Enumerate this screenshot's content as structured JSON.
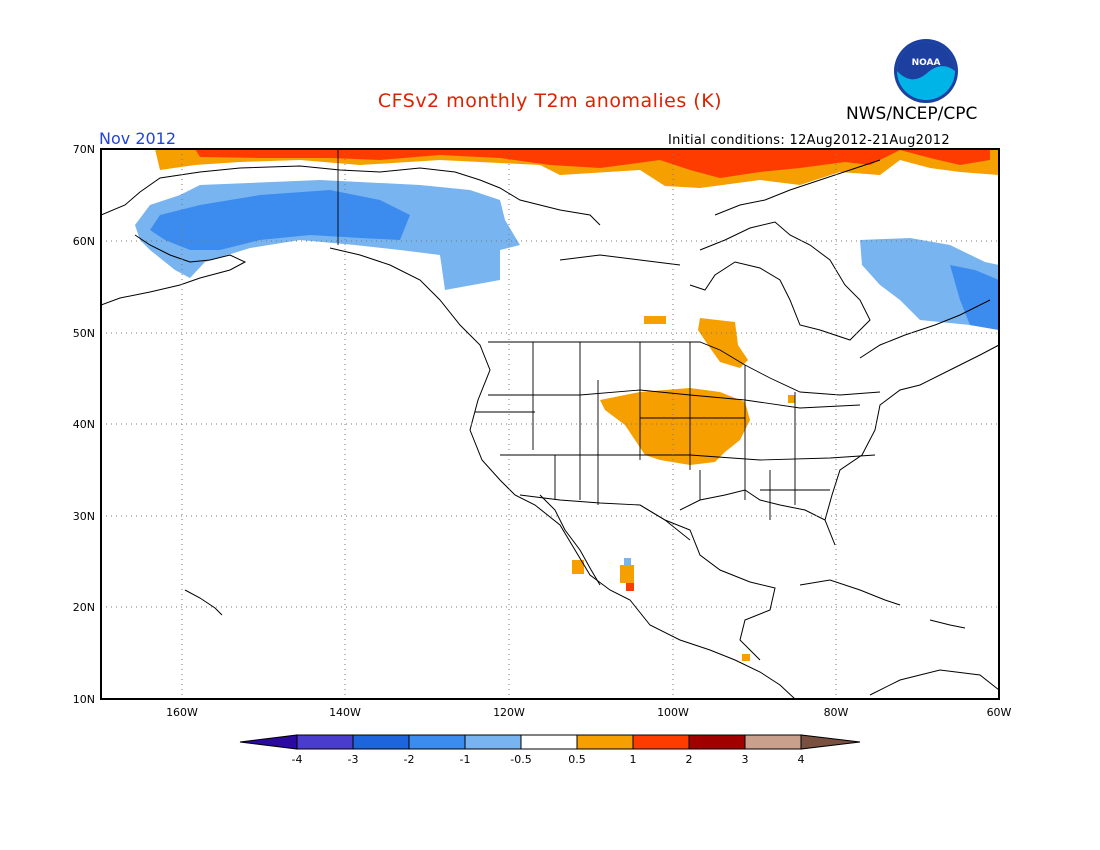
{
  "title": "CFSv2 monthly T2m anomalies (K)",
  "agency": "NWS/NCEP/CPC",
  "logo_text": "NOAA",
  "month": "Nov 2012",
  "initial_conditions": "Initial conditions: 12Aug2012-21Aug2012",
  "colors": {
    "title": "#dd2200",
    "month": "#2244dd"
  },
  "map": {
    "lon_range": [
      -170,
      -60
    ],
    "lat_range": [
      10,
      70
    ],
    "lat_labels": [
      "70N",
      "60N",
      "50N",
      "40N",
      "30N",
      "20N",
      "10N"
    ],
    "lon_labels": [
      "160W",
      "140W",
      "120W",
      "100W",
      "80W",
      "60W"
    ]
  },
  "legend": {
    "labels": [
      "-4",
      "-3",
      "-2",
      "-1",
      "-0.5",
      "0.5",
      "1",
      "2",
      "3",
      "4"
    ],
    "colors": [
      "#2a0aa0",
      "#4a3ccc",
      "#1e64dc",
      "#3c8cf0",
      "#78b4f0",
      "#ffffff",
      "#f5a000",
      "#ff3c00",
      "#a00000",
      "#c8a08c",
      "#7a5040"
    ]
  }
}
